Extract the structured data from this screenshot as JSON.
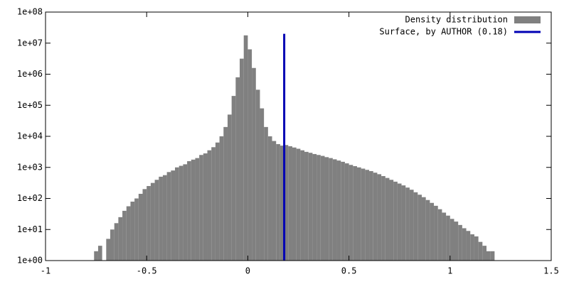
{
  "chart_data": {
    "type": "histogram",
    "log_y": true,
    "xlim": [
      -1,
      1.5
    ],
    "ylim": [
      1,
      100000000
    ],
    "xticks": [
      -1,
      -0.5,
      0,
      0.5,
      1,
      1.5
    ],
    "yticks": [
      {
        "value": 1,
        "label": "1e+00"
      },
      {
        "value": 10,
        "label": "1e+01"
      },
      {
        "value": 100,
        "label": "1e+02"
      },
      {
        "value": 1000,
        "label": "1e+03"
      },
      {
        "value": 10000,
        "label": "1e+04"
      },
      {
        "value": 100000,
        "label": "1e+05"
      },
      {
        "value": 1000000,
        "label": "1e+06"
      },
      {
        "value": 10000000,
        "label": "1e+07"
      },
      {
        "value": 100000000,
        "label": "1e+08"
      }
    ],
    "legend": "top-right",
    "series": [
      {
        "name": "Density distribution",
        "color": "#808080",
        "bins": [
          -0.76,
          -0.74,
          -0.72,
          -0.7,
          -0.68,
          -0.66,
          -0.64,
          -0.62,
          -0.6,
          -0.58,
          -0.56,
          -0.54,
          -0.52,
          -0.5,
          -0.48,
          -0.46,
          -0.44,
          -0.42,
          -0.4,
          -0.38,
          -0.36,
          -0.34,
          -0.32,
          -0.3,
          -0.28,
          -0.26,
          -0.24,
          -0.22,
          -0.2,
          -0.18,
          -0.16,
          -0.14,
          -0.12,
          -0.1,
          -0.08,
          -0.06,
          -0.04,
          -0.02,
          0,
          0.02,
          0.04,
          0.06,
          0.08,
          0.1,
          0.12,
          0.14,
          0.16,
          0.18,
          0.2,
          0.22,
          0.24,
          0.26,
          0.28,
          0.3,
          0.32,
          0.34,
          0.36,
          0.38,
          0.4,
          0.42,
          0.44,
          0.46,
          0.48,
          0.5,
          0.52,
          0.54,
          0.56,
          0.58,
          0.6,
          0.62,
          0.64,
          0.66,
          0.68,
          0.7,
          0.72,
          0.74,
          0.76,
          0.78,
          0.8,
          0.82,
          0.84,
          0.86,
          0.88,
          0.9,
          0.92,
          0.94,
          0.96,
          0.98,
          1,
          1.02,
          1.04,
          1.06,
          1.08,
          1.1,
          1.12,
          1.14,
          1.16,
          1.18,
          1.2,
          1.22
        ],
        "values": [
          2,
          3,
          1,
          5,
          10,
          16,
          25,
          40,
          56,
          79,
          100,
          141,
          200,
          251,
          316,
          398,
          501,
          562,
          708,
          794,
          1000,
          1122,
          1259,
          1585,
          1778,
          1995,
          2512,
          2818,
          3548,
          4467,
          6310,
          10000,
          19953,
          50119,
          199526,
          794328,
          3162278,
          17782794,
          6309573,
          1584893,
          316228,
          79433,
          19953,
          10000,
          7079,
          5623,
          5012,
          5248,
          4786,
          4365,
          3981,
          3548,
          3162,
          2951,
          2692,
          2512,
          2344,
          2138,
          1995,
          1820,
          1660,
          1514,
          1349,
          1202,
          1096,
          1000,
          912,
          832,
          759,
          676,
          603,
          525,
          457,
          398,
          347,
          302,
          263,
          224,
          191,
          158,
          132,
          110,
          89,
          72,
          58,
          45,
          35,
          28,
          22,
          18,
          14,
          11,
          9,
          7,
          6,
          4,
          3,
          2,
          2
        ]
      },
      {
        "name": "Surface, by AUTHOR (0.18)",
        "color": "#0000b4",
        "type": "line",
        "x": [
          0.18,
          0.18
        ],
        "values": [
          1,
          20000000
        ]
      }
    ]
  }
}
